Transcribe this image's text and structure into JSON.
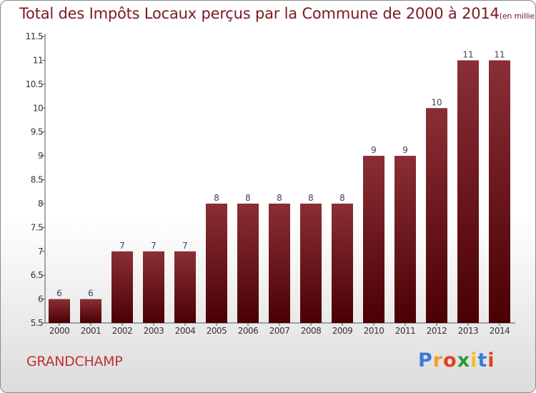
{
  "title": "Total des Impôts Locaux perçus par la Commune de 2000 à 2014",
  "unit": "(en milliers d'€)",
  "commune": "GRANDCHAMP",
  "logo": {
    "letters": [
      "P",
      "r",
      "o",
      "x",
      "i",
      "t",
      "i"
    ],
    "colors": [
      "#3a7bd5",
      "#f0a020",
      "#e04020",
      "#2a9a40",
      "#f0c020",
      "#3a7bd5",
      "#e04020"
    ]
  },
  "colors": {
    "bar_top": "#8a2f36",
    "bar_bottom": "#4a0004",
    "title": "#7a1a22",
    "commune": "#c0303a"
  },
  "chart_data": {
    "type": "bar",
    "title": "Total des Impôts Locaux perçus par la Commune de 2000 à 2014",
    "xlabel": "",
    "ylabel": "(en milliers d'€)",
    "categories": [
      "2000",
      "2001",
      "2002",
      "2003",
      "2004",
      "2005",
      "2006",
      "2007",
      "2008",
      "2009",
      "2010",
      "2011",
      "2012",
      "2013",
      "2014"
    ],
    "values": [
      6,
      6,
      7,
      7,
      7,
      8,
      8,
      8,
      8,
      8,
      9,
      9,
      10,
      11,
      11
    ],
    "ylim": [
      5.5,
      11.5
    ],
    "yticks": [
      "5.5",
      "6",
      "6.5",
      "7",
      "7.5",
      "8",
      "8.5",
      "9",
      "9.5",
      "10",
      "10.5",
      "11",
      "11.5"
    ],
    "grid": false
  }
}
